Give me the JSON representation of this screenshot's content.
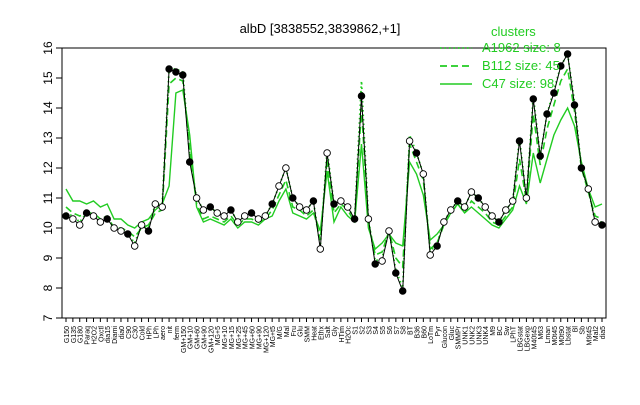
{
  "chart_data": {
    "type": "line",
    "title": "albD [3838552,3839862,+1]",
    "xlabel": "",
    "ylabel": "",
    "ylim": [
      7,
      16
    ],
    "yticks": [
      7,
      8,
      9,
      10,
      11,
      12,
      13,
      14,
      15,
      16
    ],
    "legend": {
      "title": "clusters",
      "position": "top-right",
      "entries": [
        {
          "label": "A1962 size: 8",
          "style": "dotted",
          "color": "#22cc22"
        },
        {
          "label": "B112 size: 45",
          "style": "dashed",
          "color": "#22cc22"
        },
        {
          "label": "C47 size: 98",
          "style": "solid",
          "color": "#22cc22"
        }
      ]
    },
    "xtick_labels": [
      "G150",
      "G135",
      "G180",
      "Paraq",
      "H2O2",
      "Oxctl",
      "dia15",
      "Diami",
      "dia0",
      "C90",
      "C30",
      "Cold",
      "HPh",
      "LPh",
      "aero",
      "nit",
      "ferm",
      "GM+150",
      "GM+10",
      "GM+60",
      "GM+90",
      "GM+120",
      "MG+5",
      "MG+10",
      "MG+15",
      "MG+25",
      "MG+45",
      "MG+60",
      "MG+90",
      "MG+120",
      "MG+t5",
      "M/G",
      "Mal",
      "Fru",
      "Glu",
      "SMM",
      "Heat",
      "Ethx",
      "Salt",
      "Gly",
      "HTim",
      "H2Oc",
      "S1",
      "S2",
      "S3",
      "S4",
      "S5",
      "S6",
      "S7",
      "S8",
      "BT",
      "B36",
      "B60",
      "LoTm",
      "Pyr",
      "Glucon",
      "Gluc",
      "SMMPr",
      "UNK1",
      "UNK2",
      "UNK3",
      "UNK4",
      "M9",
      "BC",
      "Sw",
      "LPhT",
      "LBGstat",
      "LBGexp",
      "M40t45",
      "M63",
      "Lman",
      "M0t45",
      "M0t90",
      "Lbstat",
      "Bl",
      "Sb",
      "M9t45",
      "Mal2",
      "dia5"
    ],
    "x_display_labels": [
      "G150",
      "G135",
      "G180",
      "Paraq",
      "H2O2",
      "Oxctl",
      "dia15",
      "Diami",
      "dia0",
      "C90",
      "C30",
      "Cold",
      "HPh",
      "LPh",
      "aero",
      "nit",
      "ferm",
      "GM+150",
      "GM+10",
      "GM+60",
      "GM+90",
      "GM+120",
      "MG+5",
      "MG+10",
      "MG+15",
      "MG+25",
      "MG+45",
      "MG+60",
      "MG+90",
      "MG+120",
      "MG+t5",
      "M/G",
      "Mal",
      "Fru",
      "Glu",
      "SMM",
      "Heat",
      "Ethx",
      "Salt",
      "Gly",
      "HTim",
      "H2Oc",
      "S1",
      "S2",
      "S3",
      "S4",
      "S5",
      "S6",
      "S7",
      "S8",
      "BT",
      "B36",
      "B60",
      "LoTm",
      "Pyr",
      "Glucon",
      "Gluc",
      "SMMPr",
      "UNK1",
      "UNK2",
      "UNK3",
      "UNK4",
      "M9",
      "BC",
      "Sw",
      "LPhT",
      "LBGstat",
      "LBGexp",
      "M40t45",
      "M63",
      "Lman",
      "M0t45",
      "M0t90",
      "Lbstat",
      "Bl",
      "Sb",
      "M9t45",
      "Mal2",
      "dia5"
    ],
    "series": [
      {
        "name": "points",
        "values": [
          10.4,
          10.3,
          10.1,
          10.5,
          10.4,
          10.2,
          10.3,
          10.0,
          9.9,
          9.8,
          9.4,
          10.1,
          9.9,
          10.8,
          10.7,
          15.3,
          15.2,
          15.1,
          12.2,
          11.0,
          10.6,
          10.7,
          10.5,
          10.4,
          10.6,
          10.2,
          10.4,
          10.5,
          10.3,
          10.4,
          10.8,
          11.4,
          12.0,
          11.0,
          10.7,
          10.6,
          10.9,
          9.3,
          12.5,
          10.8,
          10.9,
          10.7,
          10.3,
          14.4,
          10.3,
          8.8,
          8.9,
          9.9,
          8.5,
          7.9,
          12.9,
          12.5,
          11.8,
          9.1,
          9.4,
          10.2,
          10.6,
          10.9,
          10.7,
          11.2,
          11.0,
          10.7,
          10.4,
          10.2,
          10.6,
          10.9,
          12.9,
          11.0,
          14.3,
          12.4,
          13.8,
          14.5,
          15.4,
          15.8,
          14.1,
          12.0,
          11.3,
          10.2,
          10.1
        ]
      },
      {
        "name": "C47 size: 98",
        "values": [
          11.3,
          10.9,
          10.9,
          10.8,
          10.9,
          10.7,
          10.8,
          10.3,
          10.3,
          10.1,
          10.0,
          10.2,
          10.3,
          10.6,
          10.8,
          11.4,
          14.5,
          14.6,
          13.1,
          10.7,
          10.2,
          10.3,
          10.2,
          10.1,
          10.3,
          10.0,
          10.2,
          10.2,
          10.1,
          10.3,
          10.4,
          10.9,
          11.3,
          10.5,
          10.4,
          10.3,
          10.5,
          9.9,
          11.9,
          10.2,
          10.7,
          10.4,
          10.2,
          12.8,
          10.0,
          9.3,
          9.5,
          9.8,
          9.5,
          9.4,
          12.2,
          11.8,
          11.1,
          9.6,
          9.8,
          10.1,
          10.5,
          10.8,
          10.5,
          10.7,
          10.5,
          10.3,
          10.1,
          10.0,
          10.3,
          10.6,
          11.4,
          10.8,
          12.5,
          11.5,
          12.3,
          13.1,
          13.6,
          14.0,
          13.4,
          12.2,
          11.3,
          10.7,
          10.8
        ]
      },
      {
        "name": "B112 size: 45",
        "values": [
          10.7,
          10.5,
          10.4,
          10.5,
          10.5,
          10.3,
          10.4,
          10.0,
          10.0,
          9.9,
          9.7,
          10.0,
          10.1,
          10.5,
          10.6,
          14.8,
          15.0,
          14.9,
          12.6,
          10.8,
          10.3,
          10.4,
          10.3,
          10.2,
          10.4,
          10.1,
          10.3,
          10.3,
          10.2,
          10.3,
          10.6,
          11.1,
          11.6,
          10.7,
          10.6,
          10.4,
          10.6,
          9.6,
          12.3,
          10.5,
          10.8,
          10.6,
          10.2,
          14.0,
          10.2,
          9.1,
          9.2,
          9.9,
          9.0,
          8.7,
          12.8,
          12.2,
          11.6,
          9.3,
          9.5,
          10.1,
          10.5,
          10.8,
          10.5,
          10.9,
          10.7,
          10.5,
          10.2,
          10.1,
          10.4,
          10.7,
          12.3,
          10.9,
          13.8,
          12.1,
          13.3,
          14.1,
          14.9,
          15.3,
          13.9,
          12.0,
          11.2,
          10.4,
          10.3
        ]
      },
      {
        "name": "A1962 size: 8",
        "values": [
          10.5,
          10.4,
          10.2,
          10.5,
          10.4,
          10.2,
          10.3,
          10.0,
          9.9,
          9.8,
          9.5,
          10.1,
          10.0,
          10.8,
          10.8,
          15.3,
          15.3,
          15.2,
          12.4,
          11.0,
          10.6,
          10.7,
          10.5,
          10.4,
          10.6,
          10.2,
          10.4,
          10.5,
          10.3,
          10.4,
          10.8,
          11.4,
          12.0,
          11.0,
          10.7,
          10.6,
          10.9,
          9.4,
          12.6,
          10.8,
          10.9,
          10.7,
          10.3,
          14.9,
          10.3,
          8.9,
          9.0,
          9.9,
          8.6,
          8.0,
          13.1,
          12.5,
          11.8,
          9.2,
          9.5,
          10.2,
          10.6,
          10.9,
          10.7,
          11.2,
          11.0,
          10.7,
          10.4,
          10.2,
          10.6,
          10.9,
          13.0,
          11.0,
          14.4,
          12.4,
          13.8,
          14.6,
          15.4,
          15.8,
          14.2,
          12.0,
          11.3,
          10.2,
          10.2
        ]
      }
    ],
    "colors": {
      "line": "#22cc22",
      "points": "#000000",
      "axis": "#000000"
    }
  }
}
